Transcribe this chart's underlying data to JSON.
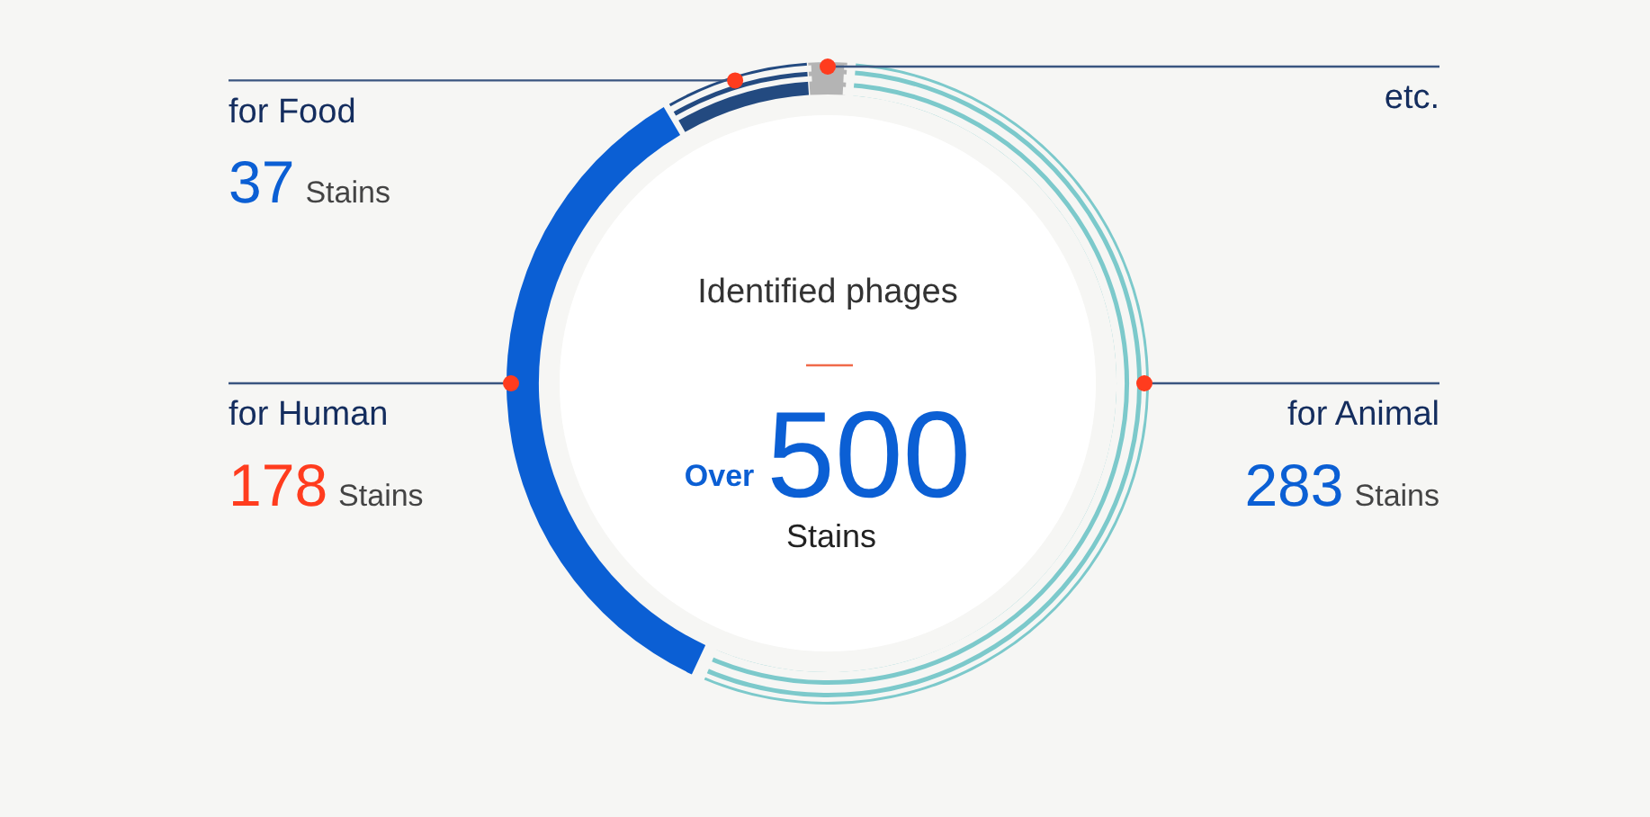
{
  "chart_data": {
    "type": "donut",
    "title": "Identified phages",
    "categories": [
      "for Animal",
      "for Human",
      "for Food",
      "etc."
    ],
    "values": [
      283,
      178,
      37,
      10
    ],
    "colors": [
      "#7cc9cb",
      "#0b5fd4",
      "#234a80",
      "#b4b4b4"
    ],
    "value_labels": [
      "283 Stains",
      "178 Stains",
      "37 Stains",
      null
    ],
    "annotations": [
      "Over",
      "500",
      "Stains"
    ],
    "legend": false
  }
}
